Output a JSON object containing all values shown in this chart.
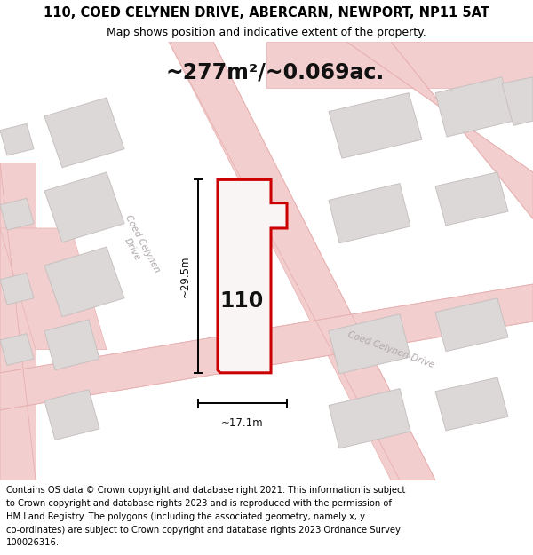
{
  "title": "110, COED CELYNEN DRIVE, ABERCARN, NEWPORT, NP11 5AT",
  "subtitle": "Map shows position and indicative extent of the property.",
  "area_text": "~277m²/~0.069ac.",
  "label_110": "110",
  "dim_height": "~29.5m",
  "dim_width": "~17.1m",
  "footer": "Contains OS data © Crown copyright and database right 2021. This information is subject to Crown copyright and database rights 2023 and is reproduced with the permission of HM Land Registry. The polygons (including the associated geometry, namely x, y co-ordinates) are subject to Crown copyright and database rights 2023 Ordnance Survey 100026316.",
  "map_bg": "#f7f2f2",
  "road_fill": "#f2cece",
  "road_edge": "#e8b0b0",
  "building_fill": "#ddd8d8",
  "building_edge": "#c8c0c0",
  "plot_outline_color": "#cc0000",
  "plot_fill_color": "#faf5f5",
  "dim_line_color": "#000000",
  "street_label_color": "#b0a8a8",
  "title_fontsize": 10.5,
  "subtitle_fontsize": 9,
  "footer_fontsize": 7.2,
  "area_fontsize": 17,
  "label_fontsize": 17
}
